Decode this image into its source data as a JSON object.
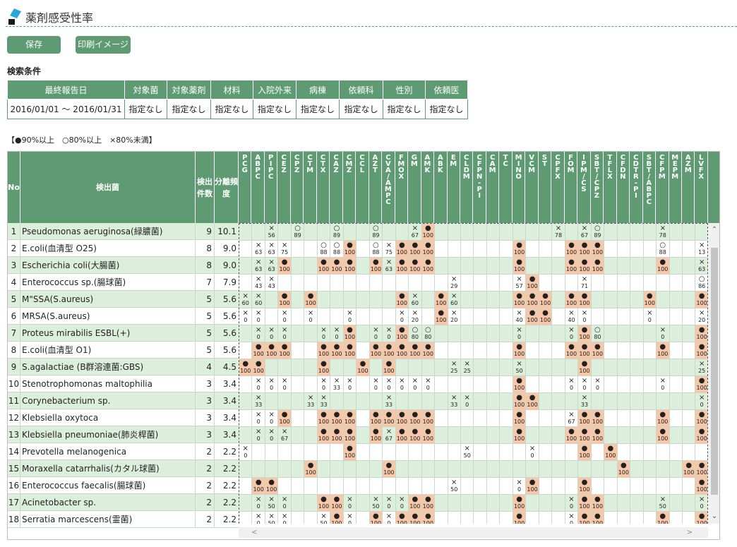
{
  "header": {
    "title": "薬剤感受性率"
  },
  "toolbar": {
    "save_label": "保存",
    "print_label": "印刷イメージ"
  },
  "search": {
    "title": "検索条件",
    "headers": [
      "最終報告日",
      "対象菌",
      "対象薬剤",
      "材料",
      "入院外来",
      "病棟",
      "依頼科",
      "性別",
      "依頼医"
    ],
    "values": [
      "2016/01/01 〜 2016/01/31",
      "指定なし",
      "指定なし",
      "指定なし",
      "指定なし",
      "指定なし",
      "指定なし",
      "指定なし",
      "指定なし"
    ]
  },
  "legend": "【●90%以上　○80%以上　×80%未満】",
  "grid": {
    "col_no": "No",
    "col_bac": "検出菌",
    "col_count": "検出件数",
    "col_freq": "分離頻度",
    "drugs": [
      "PCG",
      "ABPC",
      "PIPC",
      "CEZ",
      "CPZ",
      "CTM",
      "CTX",
      "CAZ",
      "CMZ",
      "CCL",
      "AZT",
      "CVA/AMPC",
      "FMOX",
      "GM",
      "AMK",
      "ABK",
      "EM",
      "CLDM",
      "CFPN-PI",
      "CAM",
      "TC",
      "MINO",
      "VCM",
      "ST",
      "CPFX",
      "FOM",
      "IPM/CS",
      "SBT/CPZ",
      "TFLX",
      "CFDN",
      "CDTR-PI",
      "SBT/ABPC",
      "CFPM",
      "MEPM",
      "AZM",
      "LVFX"
    ],
    "rows": [
      {
        "no": "1",
        "name": "Pseudomonas aeruginosa(緑膿菌)",
        "count": "9",
        "freq": "10.1",
        "cells": {
          "2": "x56",
          "4": "o89",
          "7": "o89",
          "10": "o89",
          "13": "x67",
          "14": "●100",
          "24": "x78",
          "26": "x67",
          "27": "o89",
          "32": "x78"
        }
      },
      {
        "no": "2",
        "name": "E.coli(血清型 O25)",
        "count": "8",
        "freq": "9.0",
        "cells": {
          "1": "x63",
          "2": "x63",
          "3": "x75",
          "6": "o88",
          "7": "o88",
          "8": "●100",
          "10": "o88",
          "11": "x75",
          "12": "●100",
          "13": "●100",
          "14": "●100",
          "21": "●100",
          "25": "●100",
          "26": "●100",
          "27": "●100",
          "32": "o88",
          "35": "x13"
        }
      },
      {
        "no": "3",
        "name": "Escherichia coli(大腸菌)",
        "count": "8",
        "freq": "9.0",
        "cells": {
          "1": "x63",
          "2": "x63",
          "3": "●100",
          "6": "●100",
          "7": "●100",
          "8": "●100",
          "10": "●100",
          "11": "x63",
          "12": "●100",
          "13": "●100",
          "14": "●100",
          "21": "●100",
          "25": "●100",
          "26": "●100",
          "27": "●100",
          "32": "●100",
          "35": "x63"
        }
      },
      {
        "no": "4",
        "name": "Enterococcus sp.(腸球菌)",
        "count": "7",
        "freq": "7.9",
        "cells": {
          "1": "x43",
          "2": "x43",
          "16": "x29",
          "21": "x57",
          "22": "●100",
          "26": "x71",
          "35": "o86"
        }
      },
      {
        "no": "5",
        "name": "M\"SSA(S.aureus)",
        "count": "5",
        "freq": "5.6",
        "cells": {
          "0": "x60",
          "1": "x60",
          "3": "●100",
          "5": "●100",
          "12": "●100",
          "13": "x60",
          "15": "●100",
          "16": "x60",
          "21": "●100",
          "22": "●100",
          "23": "●100",
          "25": "●100",
          "26": "●100",
          "31": "●100",
          "35": "●100"
        }
      },
      {
        "no": "6",
        "name": "MRSA(S.aureus)",
        "count": "5",
        "freq": "5.6",
        "cells": {
          "0": "x0",
          "1": "x0",
          "3": "x0",
          "5": "x0",
          "8": "x0",
          "12": "x0",
          "13": "x20",
          "15": "●100",
          "16": "x20",
          "21": "x40",
          "22": "●100",
          "23": "●100",
          "25": "x40",
          "26": "x0",
          "31": "x0",
          "35": "x20"
        }
      },
      {
        "no": "7",
        "name": "Proteus mirabilis ESBL(+)",
        "count": "5",
        "freq": "5.6",
        "cells": {
          "1": "x0",
          "2": "x0",
          "3": "x0",
          "6": "x0",
          "7": "x0",
          "8": "●100",
          "10": "x0",
          "11": "x0",
          "12": "●100",
          "13": "o80",
          "14": "o80",
          "21": "x0",
          "25": "x0",
          "26": "●100",
          "27": "o80",
          "32": "x0",
          "35": "●100"
        }
      },
      {
        "no": "8",
        "name": "E.coli(血清型 O1)",
        "count": "5",
        "freq": "5.6",
        "cells": {
          "1": "●100",
          "2": "●100",
          "3": "●100",
          "6": "●100",
          "7": "●100",
          "8": "●100",
          "10": "●100",
          "11": "●100",
          "12": "●100",
          "13": "●100",
          "14": "●100",
          "21": "●100",
          "25": "●100",
          "26": "●100",
          "27": "●100",
          "32": "●100",
          "35": "●100"
        }
      },
      {
        "no": "9",
        "name": "S.agalactiae (B群溶連菌:GBS)",
        "count": "4",
        "freq": "4.5",
        "cells": {
          "0": "●100",
          "1": "●100",
          "6": "●100",
          "9": "●100",
          "11": "●100",
          "16": "x25",
          "17": "x25",
          "21": "x50",
          "26": "●100",
          "35": "x25"
        }
      },
      {
        "no": "10",
        "name": "Stenotrophomonas maltophilia",
        "count": "3",
        "freq": "3.4",
        "cells": {
          "1": "x0",
          "2": "x0",
          "3": "x0",
          "6": "x0",
          "7": "x33",
          "8": "x0",
          "10": "x0",
          "11": "x0",
          "12": "x0",
          "13": "x0",
          "14": "x0",
          "21": "●100",
          "25": "x0",
          "26": "x0",
          "27": "x0",
          "32": "x0",
          "35": "●100"
        }
      },
      {
        "no": "11",
        "name": "Corynebacterium sp.",
        "count": "3",
        "freq": "3.4",
        "cells": {
          "1": "x33",
          "5": "x33",
          "6": "x33",
          "11": "x33",
          "16": "x33",
          "17": "x0",
          "21": "●100",
          "22": "●100",
          "26": "x33",
          "35": "x0"
        }
      },
      {
        "no": "12",
        "name": "Klebsiella oxytoca",
        "count": "3",
        "freq": "3.4",
        "cells": {
          "1": "x0",
          "2": "x0",
          "3": "●100",
          "6": "●100",
          "7": "●100",
          "8": "●100",
          "10": "●100",
          "11": "●100",
          "12": "●100",
          "13": "●100",
          "14": "●100",
          "21": "●100",
          "25": "x67",
          "26": "●100",
          "27": "●100",
          "32": "●100",
          "35": "●100"
        }
      },
      {
        "no": "13",
        "name": "Klebsiella pneumoniae(肺炎桿菌)",
        "count": "3",
        "freq": "3.4",
        "cells": {
          "1": "x0",
          "2": "x0",
          "3": "x67",
          "6": "●100",
          "7": "●100",
          "8": "●100",
          "10": "●100",
          "11": "x67",
          "12": "●100",
          "13": "●100",
          "14": "●100",
          "21": "●100",
          "25": "●100",
          "26": "●100",
          "27": "●100",
          "32": "●100",
          "35": "●100"
        }
      },
      {
        "no": "14",
        "name": "Prevotella melanogenica",
        "count": "2",
        "freq": "2.2",
        "cells": {
          "0": "x0",
          "8": "●100",
          "17": "x50",
          "22": "x0",
          "26": "●100",
          "28": "●100"
        }
      },
      {
        "no": "15",
        "name": "Moraxella catarrhalis(カタル球菌)",
        "count": "2",
        "freq": "2.2",
        "cells": {
          "5": "●100",
          "11": "●100",
          "29": "●100",
          "34": "●100",
          "35": "●100"
        }
      },
      {
        "no": "16",
        "name": "Enterococcus faecalis(腸球菌)",
        "count": "2",
        "freq": "2.2",
        "cells": {
          "1": "●100",
          "2": "●100",
          "16": "x50",
          "21": "x0",
          "22": "●100",
          "26": "●100",
          "35": "●100"
        }
      },
      {
        "no": "17",
        "name": "Acinetobacter sp.",
        "count": "2",
        "freq": "2.2",
        "cells": {
          "1": "x0",
          "2": "x50",
          "3": "x0",
          "6": "●100",
          "7": "●100",
          "8": "x0",
          "10": "x50",
          "11": "x0",
          "12": "x0",
          "13": "●100",
          "14": "●100",
          "21": "●100",
          "25": "x0",
          "26": "●100",
          "27": "●100",
          "32": "x50",
          "35": "x0"
        }
      },
      {
        "no": "18",
        "name": "Serratia marcescens(霊菌)",
        "count": "2",
        "freq": "2.2",
        "cells": {
          "1": "x0",
          "2": "x50",
          "3": "x0",
          "6": "x50",
          "7": "●100",
          "8": "x0",
          "10": "●100",
          "11": "x0",
          "12": "●100",
          "13": "●100",
          "14": "●100",
          "21": "●100",
          "25": "x0",
          "26": "●100",
          "27": "●100",
          "32": "●100",
          "35": "●100"
        }
      }
    ]
  }
}
